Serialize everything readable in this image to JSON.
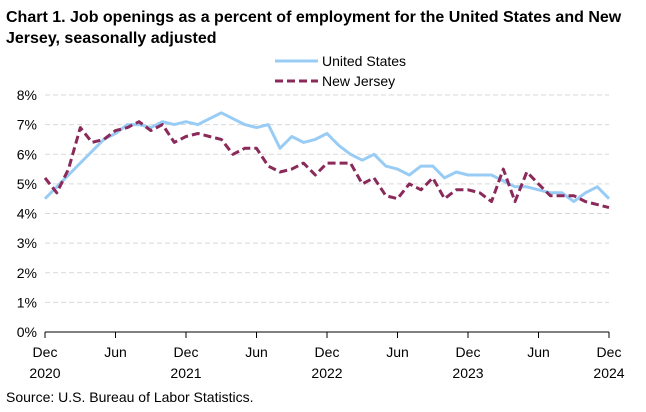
{
  "title": "Chart 1. Job openings as a percent of employment for the United States and New Jersey, seasonally adjusted",
  "source": "Source: U.S. Bureau of Labor Statistics.",
  "chart_data": {
    "type": "line",
    "title": "Chart 1. Job openings as a percent of employment for the United States and New Jersey, seasonally adjusted",
    "xlabel": "",
    "ylabel": "",
    "ylim": [
      0,
      8
    ],
    "yticks": [
      "0%",
      "1%",
      "2%",
      "3%",
      "4%",
      "5%",
      "6%",
      "7%",
      "8%"
    ],
    "grid": true,
    "legend_position": "top-center",
    "x_ticks": [
      {
        "index": 0,
        "month": "Dec",
        "year": "2020"
      },
      {
        "index": 6,
        "month": "Jun",
        "year": ""
      },
      {
        "index": 12,
        "month": "Dec",
        "year": "2021"
      },
      {
        "index": 18,
        "month": "Jun",
        "year": ""
      },
      {
        "index": 24,
        "month": "Dec",
        "year": "2022"
      },
      {
        "index": 30,
        "month": "Jun",
        "year": ""
      },
      {
        "index": 36,
        "month": "Dec",
        "year": "2023"
      },
      {
        "index": 42,
        "month": "Jun",
        "year": ""
      },
      {
        "index": 48,
        "month": "Dec",
        "year": "2024"
      }
    ],
    "series": [
      {
        "name": "United States",
        "color": "#99ccf5",
        "style": "solid",
        "values": [
          4.5,
          4.9,
          5.3,
          5.7,
          6.1,
          6.5,
          6.7,
          7.0,
          7.0,
          6.9,
          7.1,
          7.0,
          7.1,
          7.0,
          7.2,
          7.4,
          7.2,
          7.0,
          6.9,
          7.0,
          6.2,
          6.6,
          6.4,
          6.5,
          6.7,
          6.3,
          6.0,
          5.8,
          6.0,
          5.6,
          5.5,
          5.3,
          5.6,
          5.6,
          5.2,
          5.4,
          5.3,
          5.3,
          5.3,
          5.1,
          4.9,
          4.9,
          4.8,
          4.7,
          4.7,
          4.4,
          4.7,
          4.9,
          4.5
        ]
      },
      {
        "name": "New Jersey",
        "color": "#8a2a5a",
        "style": "dashed",
        "values": [
          5.2,
          4.7,
          5.5,
          6.9,
          6.4,
          6.5,
          6.8,
          6.9,
          7.1,
          6.8,
          7.0,
          6.4,
          6.6,
          6.7,
          6.6,
          6.5,
          6.0,
          6.2,
          6.2,
          5.6,
          5.4,
          5.5,
          5.7,
          5.3,
          5.7,
          5.7,
          5.7,
          5.0,
          5.2,
          4.6,
          4.5,
          5.0,
          4.8,
          5.2,
          4.5,
          4.8,
          4.8,
          4.7,
          4.4,
          5.5,
          4.4,
          5.4,
          5.0,
          4.6,
          4.6,
          4.6,
          4.4,
          4.3,
          4.2
        ]
      }
    ]
  }
}
